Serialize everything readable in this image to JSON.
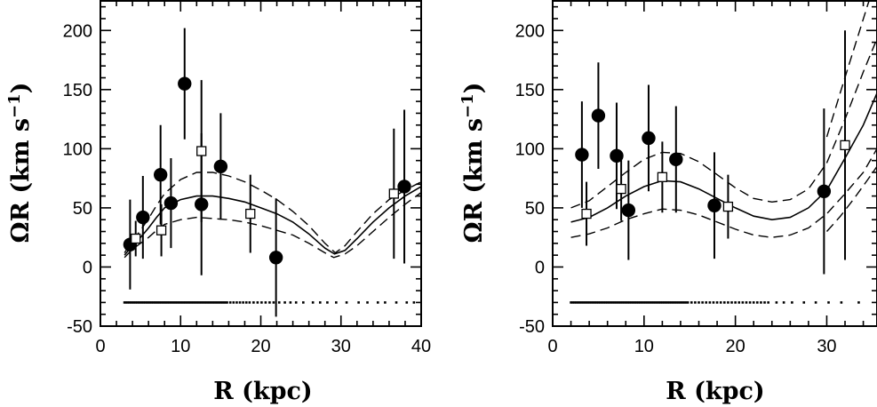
{
  "chart_data": [
    {
      "type": "scatter",
      "title": "",
      "xlabel": "R (kpc)",
      "ylabel": "ΩR (km s⁻¹)",
      "ylabel_parts": {
        "main": "ΩR (km s",
        "sup": "−1",
        "close": ")"
      },
      "xlim": [
        0,
        40
      ],
      "ylim": [
        -50,
        225
      ],
      "xticks": [
        0,
        10,
        20,
        30,
        40
      ],
      "xtick_labels": [
        "0",
        "10",
        "20",
        "30",
        "40"
      ],
      "yticks": [
        -50,
        0,
        50,
        100,
        150,
        200
      ],
      "ytick_labels": [
        "-50",
        "0",
        "50",
        "100",
        "150",
        "200"
      ],
      "series": [
        {
          "marker": "filled-circle",
          "points": [
            {
              "x": 3.7,
              "y": 19,
              "err": 38
            },
            {
              "x": 5.3,
              "y": 42,
              "err": 35
            },
            {
              "x": 7.5,
              "y": 78,
              "err": 42
            },
            {
              "x": 8.8,
              "y": 54,
              "err": 38
            },
            {
              "x": 10.5,
              "y": 155,
              "err": 47
            },
            {
              "x": 12.6,
              "y": 53,
              "err": 60
            },
            {
              "x": 15.0,
              "y": 85,
              "err": 45
            },
            {
              "x": 21.9,
              "y": 8,
              "err": 50
            },
            {
              "x": 37.9,
              "y": 68,
              "err": 65
            }
          ]
        },
        {
          "marker": "open-square",
          "points": [
            {
              "x": 4.4,
              "y": 24,
              "err": 15
            },
            {
              "x": 7.6,
              "y": 31,
              "err": 22
            },
            {
              "x": 12.6,
              "y": 98,
              "err": 60
            },
            {
              "x": 18.7,
              "y": 45,
              "err": 33
            },
            {
              "x": 36.6,
              "y": 62,
              "err": 55
            }
          ]
        },
        {
          "type": "line",
          "style": "solid",
          "points": [
            [
              3,
              10
            ],
            [
              4,
              18
            ],
            [
              5,
              25
            ],
            [
              6,
              33
            ],
            [
              7,
              42
            ],
            [
              8,
              50
            ],
            [
              10,
              57
            ],
            [
              12,
              60
            ],
            [
              14,
              60
            ],
            [
              16,
              58
            ],
            [
              18,
              55
            ],
            [
              20,
              50
            ],
            [
              22,
              45
            ],
            [
              24,
              38
            ],
            [
              26,
              28
            ],
            [
              28,
              16
            ],
            [
              29.2,
              11
            ],
            [
              30.5,
              14
            ],
            [
              32,
              24
            ],
            [
              34,
              38
            ],
            [
              36,
              50
            ],
            [
              38,
              60
            ],
            [
              40,
              68
            ]
          ]
        },
        {
          "type": "line",
          "style": "dashed",
          "points": [
            [
              3,
              12
            ],
            [
              4,
              22
            ],
            [
              5,
              31
            ],
            [
              6,
              41
            ],
            [
              7,
              52
            ],
            [
              8,
              62
            ],
            [
              10,
              74
            ],
            [
              12,
              80
            ],
            [
              14,
              80
            ],
            [
              16,
              77
            ],
            [
              18,
              72
            ],
            [
              20,
              65
            ],
            [
              22,
              57
            ],
            [
              24,
              47
            ],
            [
              26,
              35
            ],
            [
              28,
              20
            ],
            [
              29.3,
              12
            ],
            [
              30.5,
              18
            ],
            [
              32,
              30
            ],
            [
              34,
              45
            ],
            [
              36,
              57
            ],
            [
              38,
              65
            ],
            [
              40,
              72
            ]
          ]
        },
        {
          "type": "line",
          "style": "dashed",
          "points": [
            [
              3,
              8
            ],
            [
              4,
              15
            ],
            [
              5,
              20
            ],
            [
              6,
              25
            ],
            [
              7,
              31
            ],
            [
              8,
              36
            ],
            [
              10,
              40
            ],
            [
              12,
              42
            ],
            [
              14,
              41
            ],
            [
              16,
              40
            ],
            [
              18,
              38
            ],
            [
              20,
              35
            ],
            [
              22,
              31
            ],
            [
              24,
              27
            ],
            [
              26,
              20
            ],
            [
              28,
              12
            ],
            [
              29.1,
              8
            ],
            [
              30.5,
              11
            ],
            [
              32,
              18
            ],
            [
              34,
              30
            ],
            [
              36,
              42
            ],
            [
              38,
              53
            ],
            [
              40,
              63
            ]
          ]
        }
      ],
      "rug_y": -30,
      "rug_x": [
        3,
        3.2,
        3.4,
        3.6,
        3.8,
        4,
        4.2,
        4.4,
        4.6,
        4.8,
        5,
        5.2,
        5.4,
        5.6,
        5.8,
        6,
        6.2,
        6.4,
        6.6,
        6.8,
        7,
        7.2,
        7.4,
        7.6,
        7.8,
        8,
        8.2,
        8.4,
        8.6,
        8.8,
        9,
        9.2,
        9.4,
        9.6,
        9.8,
        10,
        10.2,
        10.4,
        10.6,
        10.8,
        11,
        11.2,
        11.4,
        11.6,
        11.8,
        12,
        12.2,
        12.4,
        12.6,
        12.8,
        13,
        13.2,
        13.4,
        13.6,
        13.8,
        14,
        14.2,
        14.4,
        14.6,
        14.8,
        15,
        15.2,
        15.4,
        15.6,
        15.8,
        16.2,
        16.6,
        17,
        17.4,
        17.8,
        18.2,
        18.6,
        19.1,
        19.6,
        20.1,
        20.6,
        21.1,
        21.6,
        22.3,
        23,
        23.7,
        24.4,
        25.3,
        26.5,
        27.4,
        28.3,
        29.4,
        30.7,
        32.2,
        33.3,
        34.6,
        35.5,
        36.9,
        38.2,
        39.1
      ]
    },
    {
      "type": "scatter",
      "title": "",
      "xlabel": "R (kpc)",
      "ylabel": "ΩR (km s⁻¹)",
      "ylabel_parts": {
        "main": "ΩR (km s",
        "sup": "−1",
        "close": ")"
      },
      "xlim": [
        0,
        35.5
      ],
      "ylim": [
        -50,
        225
      ],
      "xticks": [
        0,
        10,
        20,
        30
      ],
      "xtick_labels": [
        "0",
        "10",
        "20",
        "30"
      ],
      "yticks": [
        -50,
        0,
        50,
        100,
        150,
        200
      ],
      "ytick_labels": [
        "-50",
        "0",
        "50",
        "100",
        "150",
        "200"
      ],
      "series": [
        {
          "marker": "filled-circle",
          "points": [
            {
              "x": 3.2,
              "y": 95,
              "err": 45
            },
            {
              "x": 5.0,
              "y": 128,
              "err": 45
            },
            {
              "x": 7.0,
              "y": 94,
              "err": 45
            },
            {
              "x": 8.3,
              "y": 48,
              "err": 42
            },
            {
              "x": 10.5,
              "y": 109,
              "err": 45
            },
            {
              "x": 13.5,
              "y": 91,
              "err": 45
            },
            {
              "x": 17.7,
              "y": 52,
              "err": 45
            },
            {
              "x": 29.7,
              "y": 64,
              "err": 70
            }
          ]
        },
        {
          "marker": "open-square",
          "points": [
            {
              "x": 3.7,
              "y": 45,
              "err": 27
            },
            {
              "x": 7.5,
              "y": 66,
              "err": 27
            },
            {
              "x": 12.0,
              "y": 76,
              "err": 30
            },
            {
              "x": 19.2,
              "y": 51,
              "err": 27
            },
            {
              "x": 32.0,
              "y": 103,
              "err": 97
            }
          ]
        },
        {
          "type": "line",
          "style": "solid",
          "points": [
            [
              2,
              38
            ],
            [
              4,
              42
            ],
            [
              6,
              50
            ],
            [
              8,
              60
            ],
            [
              10,
              68
            ],
            [
              12,
              73
            ],
            [
              14,
              72
            ],
            [
              16,
              66
            ],
            [
              18,
              58
            ],
            [
              20,
              50
            ],
            [
              22,
              43
            ],
            [
              24,
              40
            ],
            [
              26,
              42
            ],
            [
              28,
              50
            ],
            [
              30,
              65
            ],
            [
              32,
              92
            ],
            [
              34,
              120
            ],
            [
              35.5,
              147
            ]
          ]
        },
        {
          "type": "line",
          "style": "dashed",
          "points": [
            [
              2,
              50
            ],
            [
              4,
              56
            ],
            [
              6,
              68
            ],
            [
              8,
              80
            ],
            [
              10,
              91
            ],
            [
              12,
              97
            ],
            [
              14,
              96
            ],
            [
              16,
              89
            ],
            [
              18,
              78
            ],
            [
              20,
              67
            ],
            [
              22,
              58
            ],
            [
              24,
              55
            ],
            [
              26,
              57
            ],
            [
              28,
              66
            ],
            [
              30,
              88
            ],
            [
              32,
              125
            ],
            [
              34,
              165
            ],
            [
              35.5,
              193
            ]
          ]
        },
        {
          "type": "line",
          "style": "dashed",
          "points": [
            [
              2,
              25
            ],
            [
              4,
              28
            ],
            [
              6,
              33
            ],
            [
              8,
              40
            ],
            [
              10,
              45
            ],
            [
              12,
              49
            ],
            [
              14,
              48
            ],
            [
              16,
              44
            ],
            [
              18,
              38
            ],
            [
              20,
              32
            ],
            [
              22,
              27
            ],
            [
              24,
              25
            ],
            [
              26,
              27
            ],
            [
              28,
              33
            ],
            [
              30,
              45
            ],
            [
              32,
              62
            ],
            [
              34,
              80
            ],
            [
              35.5,
              100
            ]
          ]
        },
        {
          "type": "line",
          "style": "dashed",
          "points": [
            [
              30,
              110
            ],
            [
              31.5,
              148
            ],
            [
              33,
              185
            ],
            [
              34.5,
              222
            ],
            [
              35.5,
              245
            ]
          ]
        },
        {
          "type": "line",
          "style": "dashed",
          "points": [
            [
              30,
              30
            ],
            [
              31.5,
              43
            ],
            [
              33,
              58
            ],
            [
              34.5,
              74
            ],
            [
              35.5,
              85
            ]
          ]
        }
      ],
      "rug_y": -30,
      "rug_x": [
        2,
        2.2,
        2.4,
        2.6,
        2.8,
        3,
        3.2,
        3.4,
        3.6,
        3.8,
        4,
        4.2,
        4.4,
        4.6,
        4.8,
        5,
        5.2,
        5.4,
        5.6,
        5.8,
        6,
        6.2,
        6.4,
        6.6,
        6.8,
        7,
        7.2,
        7.4,
        7.6,
        7.8,
        8,
        8.2,
        8.4,
        8.6,
        8.8,
        9,
        9.2,
        9.4,
        9.6,
        9.8,
        10,
        10.2,
        10.4,
        10.6,
        10.8,
        11,
        11.2,
        11.4,
        11.6,
        11.8,
        12,
        12.2,
        12.4,
        12.6,
        12.8,
        13,
        13.2,
        13.4,
        13.6,
        13.8,
        14,
        14.2,
        14.4,
        14.6,
        14.8,
        15.2,
        15.6,
        16,
        16.4,
        16.8,
        17.2,
        17.6,
        18,
        18.4,
        18.8,
        19.2,
        19.6,
        20,
        20.4,
        20.8,
        21.2,
        21.6,
        22,
        22.4,
        22.8,
        23.2,
        23.6,
        24.5,
        25.3,
        26.2,
        27.5,
        28.8,
        30.2,
        31.6,
        33.5
      ]
    }
  ]
}
